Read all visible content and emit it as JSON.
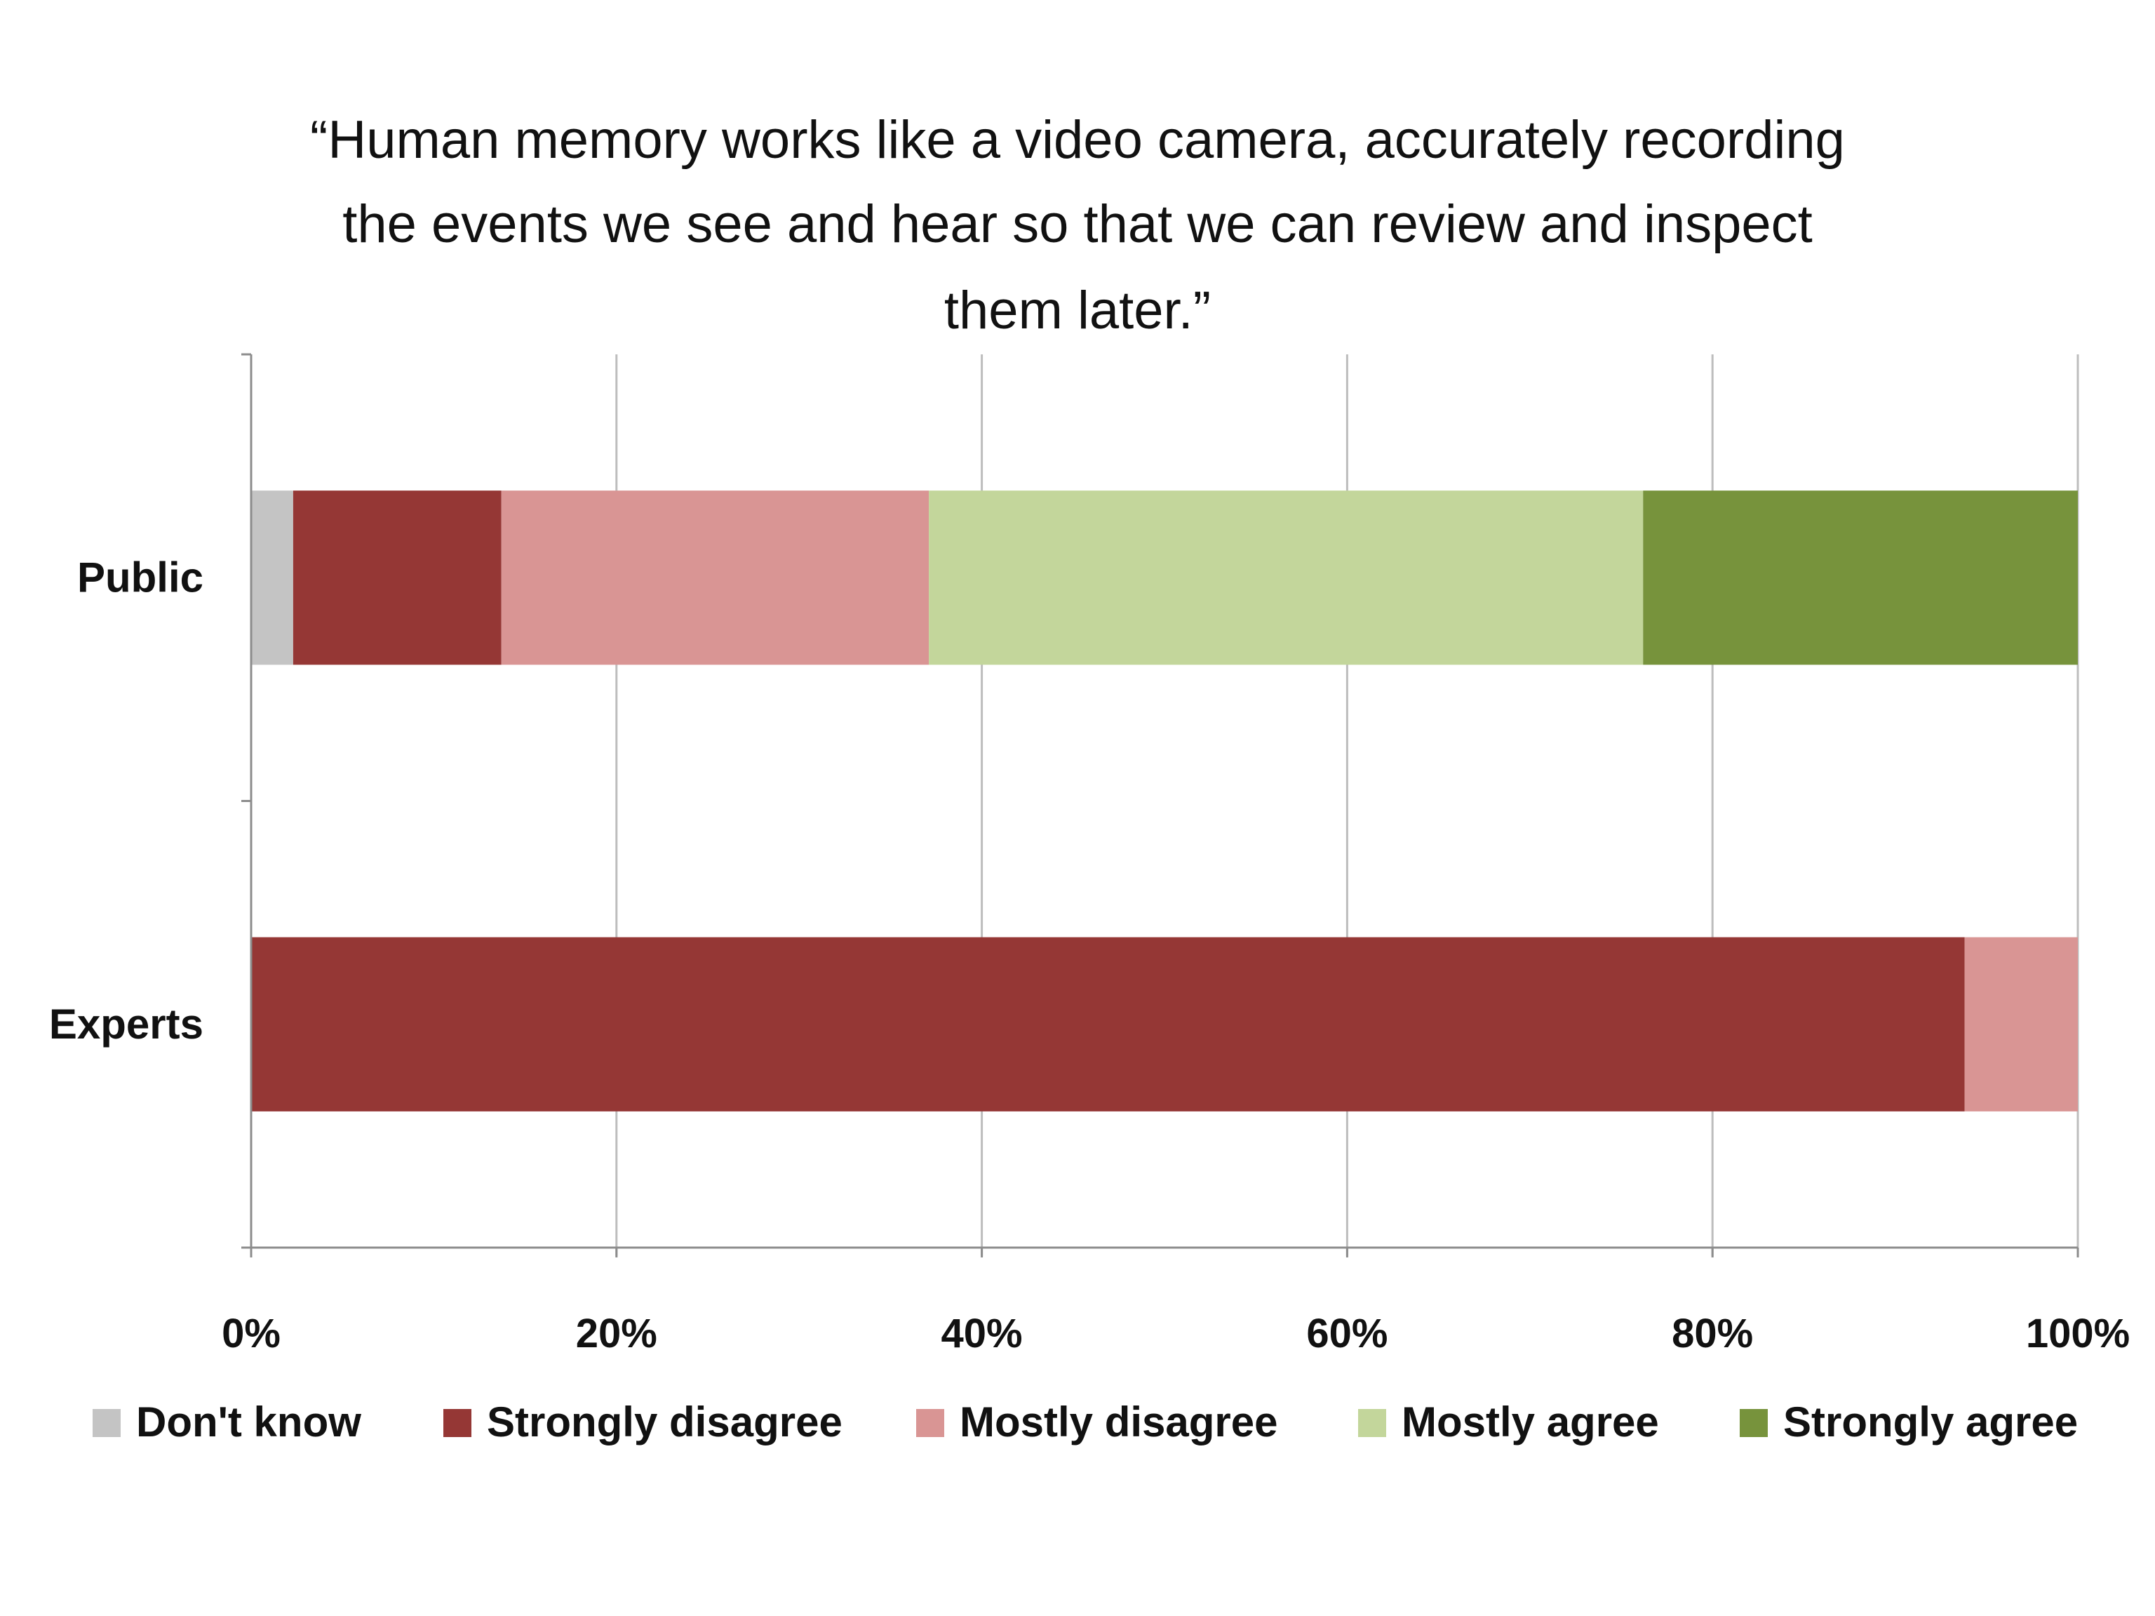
{
  "chart_data": {
    "type": "bar",
    "orientation": "horizontal",
    "stacked": "percent",
    "title_lines": [
      "“Human memory works like a video camera, accurately recording",
      "the events we see and hear so that we can review and inspect",
      "them later.”"
    ],
    "categories": [
      "Public",
      "Experts"
    ],
    "series": [
      {
        "name": "Don't know",
        "color": "#c4c4c4",
        "values": [
          2.3,
          0
        ]
      },
      {
        "name": "Strongly disagree",
        "color": "#953735",
        "values": [
          11.4,
          93.8
        ]
      },
      {
        "name": "Mostly disagree",
        "color": "#d99594",
        "values": [
          23.4,
          6.2
        ]
      },
      {
        "name": "Mostly agree",
        "color": "#c3d69b",
        "values": [
          39.1,
          0
        ]
      },
      {
        "name": "Strongly agree",
        "color": "#77933c",
        "values": [
          23.8,
          0
        ]
      }
    ],
    "x_ticks": [
      "0%",
      "20%",
      "40%",
      "60%",
      "80%",
      "100%"
    ],
    "xlim": [
      0,
      100
    ],
    "grid": true,
    "legend_position": "bottom"
  }
}
